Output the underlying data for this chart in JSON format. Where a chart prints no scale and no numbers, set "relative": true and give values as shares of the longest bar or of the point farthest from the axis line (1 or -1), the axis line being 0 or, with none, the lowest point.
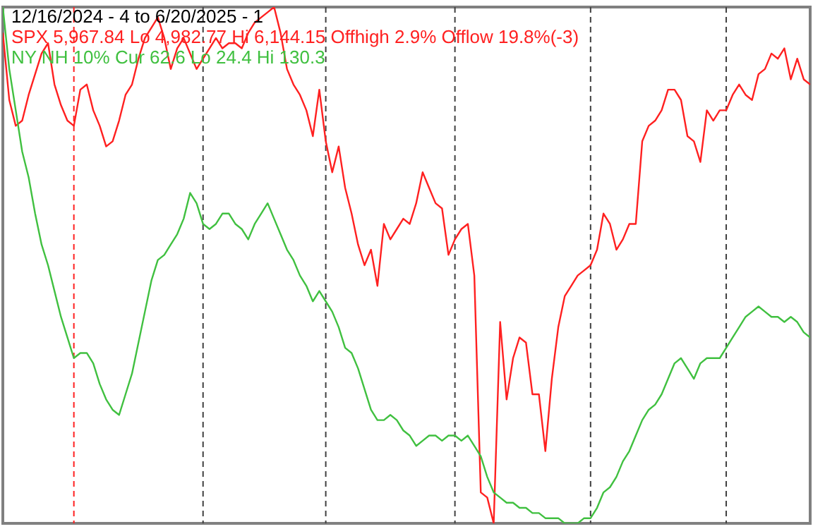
{
  "chart_data": {
    "type": "line",
    "title": "12/16/2024 - 4 to 6/20/2025 - 1",
    "relative": true,
    "line_style": "solid",
    "categories": [
      null,
      null,
      null,
      null,
      null,
      null,
      null,
      null,
      null,
      null,
      null,
      null,
      null,
      null,
      null,
      null,
      null,
      null,
      null,
      null,
      null,
      null,
      null,
      null,
      null,
      null,
      null,
      null,
      null,
      null,
      null,
      null,
      null,
      null,
      null,
      null,
      null,
      null,
      null,
      null,
      null,
      null,
      null,
      null,
      null,
      null,
      null,
      null,
      null,
      null,
      null,
      null,
      null,
      null,
      null,
      null,
      null,
      null,
      null,
      null,
      null,
      null,
      null,
      null,
      null,
      null,
      null,
      null,
      null,
      null,
      null,
      null,
      null,
      null,
      null,
      null,
      null,
      null,
      null,
      null,
      null,
      null,
      null,
      null,
      null,
      null,
      null,
      null,
      null,
      null,
      null,
      null,
      null,
      null,
      null,
      null,
      null,
      null,
      null,
      null,
      null,
      null,
      null,
      null,
      null,
      null,
      null,
      null,
      null,
      null,
      null,
      null,
      null,
      null,
      null,
      null,
      null,
      null,
      null,
      null,
      null,
      null,
      null,
      null,
      null,
      null
    ],
    "series": [
      {
        "name": "SPX 5,967.84 Lo 4,982.77 Hi 6,144.15  Offhigh 2.9%  Offlow 19.8%(-3)",
        "color": "#ff2020",
        "values": [
          0.95,
          0.82,
          0.77,
          0.78,
          0.83,
          0.87,
          0.91,
          0.93,
          0.85,
          0.81,
          0.78,
          0.77,
          0.84,
          0.85,
          0.8,
          0.77,
          0.73,
          0.74,
          0.78,
          0.83,
          0.85,
          0.9,
          0.94,
          0.96,
          0.98,
          0.94,
          0.88,
          0.92,
          0.94,
          0.91,
          0.88,
          0.9,
          0.92,
          0.94,
          0.92,
          0.93,
          0.93,
          0.92,
          0.95,
          0.97,
          0.98,
          0.99,
          1,
          0.95,
          0.88,
          0.85,
          0.83,
          0.8,
          0.75,
          0.84,
          0.74,
          0.68,
          0.73,
          0.65,
          0.6,
          0.54,
          0.5,
          0.53,
          0.46,
          0.58,
          0.55,
          0.57,
          0.59,
          0.58,
          0.62,
          0.68,
          0.65,
          0.62,
          0.61,
          0.52,
          0.55,
          0.57,
          0.58,
          0.48,
          0.06,
          0.05,
          0,
          0.39,
          0.24,
          0.32,
          0.36,
          0.35,
          0.25,
          0.25,
          0.14,
          0.28,
          0.38,
          0.44,
          0.46,
          0.48,
          0.49,
          0.5,
          0.53,
          0.6,
          0.58,
          0.53,
          0.55,
          0.58,
          0.58,
          0.74,
          0.77,
          0.78,
          0.8,
          0.84,
          0.84,
          0.82,
          0.75,
          0.74,
          0.7,
          0.8,
          0.78,
          0.8,
          0.8,
          0.83,
          0.85,
          0.83,
          0.82,
          0.87,
          0.88,
          0.91,
          0.9,
          0.92,
          0.86,
          0.9,
          0.86,
          0.85
        ]
      },
      {
        "name": "NY NH 10% Cur 62.6 Lo 24.4 Hi 130.3",
        "color": "#40c040",
        "values": [
          1,
          0.88,
          0.8,
          0.72,
          0.67,
          0.6,
          0.54,
          0.5,
          0.45,
          0.4,
          0.36,
          0.32,
          0.33,
          0.33,
          0.31,
          0.27,
          0.24,
          0.22,
          0.21,
          0.25,
          0.29,
          0.35,
          0.41,
          0.47,
          0.51,
          0.52,
          0.54,
          0.56,
          0.59,
          0.64,
          0.62,
          0.58,
          0.57,
          0.58,
          0.6,
          0.6,
          0.58,
          0.57,
          0.55,
          0.58,
          0.6,
          0.62,
          0.59,
          0.56,
          0.53,
          0.51,
          0.48,
          0.46,
          0.43,
          0.45,
          0.43,
          0.41,
          0.38,
          0.34,
          0.33,
          0.3,
          0.26,
          0.22,
          0.2,
          0.2,
          0.21,
          0.2,
          0.18,
          0.17,
          0.15,
          0.16,
          0.17,
          0.17,
          0.16,
          0.17,
          0.17,
          0.16,
          0.17,
          0.15,
          0.13,
          0.09,
          0.06,
          0.05,
          0.04,
          0.04,
          0.03,
          0.03,
          0.02,
          0.02,
          0.01,
          0.01,
          0.01,
          0,
          0,
          0,
          0.01,
          0.01,
          0.03,
          0.06,
          0.07,
          0.09,
          0.12,
          0.14,
          0.17,
          0.2,
          0.22,
          0.23,
          0.25,
          0.28,
          0.31,
          0.32,
          0.3,
          0.28,
          0.31,
          0.32,
          0.32,
          0.32,
          0.34,
          0.36,
          0.38,
          0.4,
          0.41,
          0.42,
          0.41,
          0.4,
          0.4,
          0.39,
          0.4,
          0.39,
          0.37,
          0.36
        ]
      }
    ]
  }
}
